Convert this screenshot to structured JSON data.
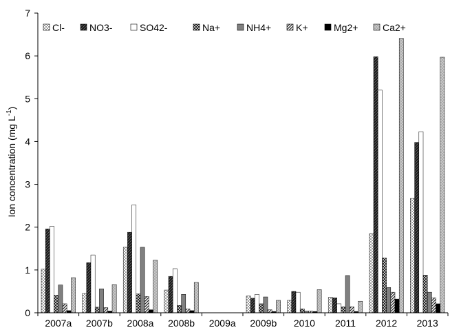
{
  "chart_data": {
    "type": "bar",
    "categories": [
      "2007a",
      "2007b",
      "2008a",
      "2008b",
      "2009a",
      "2009b",
      "2010",
      "2011",
      "2012",
      "2013"
    ],
    "series": [
      {
        "name": "Cl-",
        "values": [
          1.02,
          0.45,
          1.53,
          0.53,
          0,
          0.39,
          0.29,
          0.36,
          1.85,
          2.67
        ]
      },
      {
        "name": "NO3-",
        "values": [
          1.96,
          1.17,
          1.88,
          0.85,
          0,
          0.34,
          0.5,
          0.35,
          5.98,
          3.98
        ]
      },
      {
        "name": "SO42-",
        "values": [
          2.02,
          1.35,
          2.52,
          1.03,
          0,
          0.43,
          0.48,
          0.21,
          5.2,
          4.23
        ]
      },
      {
        "name": "Na+",
        "values": [
          0.41,
          0.13,
          0.44,
          0.17,
          0,
          0.21,
          0.09,
          0.14,
          1.28,
          0.88
        ]
      },
      {
        "name": "NH4+",
        "values": [
          0.65,
          0.56,
          1.53,
          0.43,
          0,
          0.37,
          0.04,
          0.87,
          0.59,
          0.48
        ]
      },
      {
        "name": "K+",
        "values": [
          0.21,
          0.12,
          0.38,
          0.09,
          0,
          0.07,
          0.04,
          0.14,
          0.48,
          0.35
        ]
      },
      {
        "name": "Mg2+",
        "values": [
          0.05,
          0.04,
          0.07,
          0.05,
          0,
          0.03,
          0.03,
          0.03,
          0.32,
          0.21
        ]
      },
      {
        "name": "Ca2+",
        "values": [
          0.82,
          0.66,
          1.23,
          0.71,
          0,
          0.29,
          0.54,
          0.27,
          6.41,
          5.97
        ]
      }
    ],
    "series_colors": [
      "#dcdcdc",
      "#222222",
      "#ffffff",
      "#333333",
      "#808080",
      "#666666",
      "#000000",
      "#a8a8a8"
    ],
    "series_patterns": [
      "dots",
      "diag-dark",
      "none",
      "checker",
      "none",
      "stripes",
      "none",
      "dots-light"
    ],
    "yticks": [
      "0",
      "1",
      "2",
      "3",
      "4",
      "5",
      "6",
      "7"
    ],
    "ylim": [
      0,
      7
    ],
    "ylabel_main": "Ion concentration (mg L",
    "ylabel_sup": "-1",
    "ylabel_end": ")",
    "xlabel": "",
    "title": "",
    "legend_position": "top",
    "grid": false
  }
}
